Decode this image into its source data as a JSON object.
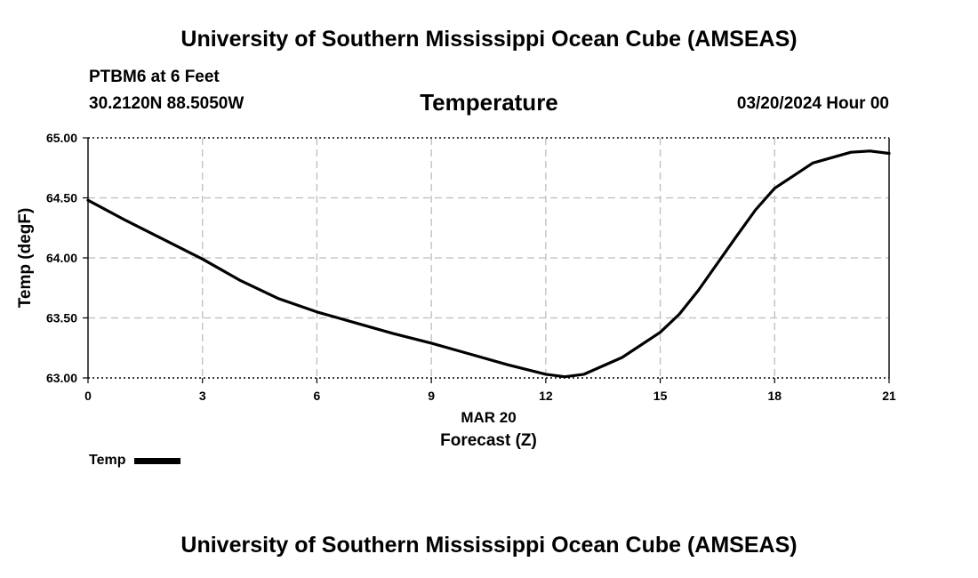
{
  "header": {
    "title": "University of Southern Mississippi Ocean Cube (AMSEAS)",
    "station": "PTBM6 at 6 Feet",
    "coordinates": "30.2120N  88.5050W",
    "chart_title": "Temperature",
    "valid_time": "03/20/2024 Hour 00"
  },
  "footer": {
    "title": "University of Southern Mississippi Ocean Cube (AMSEAS)"
  },
  "legend": {
    "label": "Temp"
  },
  "chart_data": {
    "type": "line",
    "title": "Temperature",
    "xlabel": "Forecast (Z)",
    "xlabel_date": "MAR 20",
    "ylabel": "Temp (degF)",
    "xlim": [
      0,
      21
    ],
    "ylim": [
      63.0,
      65.0
    ],
    "x_ticks": [
      0,
      3,
      6,
      9,
      12,
      15,
      18,
      21
    ],
    "x_tick_labels": [
      "0",
      "3",
      "6",
      "9",
      "12",
      "15",
      "18",
      "21"
    ],
    "y_ticks": [
      63.0,
      63.5,
      64.0,
      64.5,
      65.0
    ],
    "y_tick_labels": [
      "63.00",
      "63.50",
      "64.00",
      "64.50",
      "65.00"
    ],
    "grid": true,
    "series": [
      {
        "name": "Temp",
        "color": "#000000",
        "x": [
          0,
          1,
          2,
          3,
          4,
          5,
          6,
          7,
          8,
          9,
          10,
          11,
          12,
          12.5,
          13,
          14,
          15,
          15.5,
          16,
          17,
          17.5,
          18,
          19,
          20,
          20.5,
          21
        ],
        "y": [
          64.48,
          64.31,
          64.15,
          63.99,
          63.81,
          63.66,
          63.55,
          63.46,
          63.37,
          63.29,
          63.2,
          63.11,
          63.03,
          63.01,
          63.03,
          63.17,
          63.38,
          63.53,
          63.73,
          64.18,
          64.4,
          64.58,
          64.79,
          64.88,
          64.89,
          64.87
        ]
      }
    ]
  }
}
